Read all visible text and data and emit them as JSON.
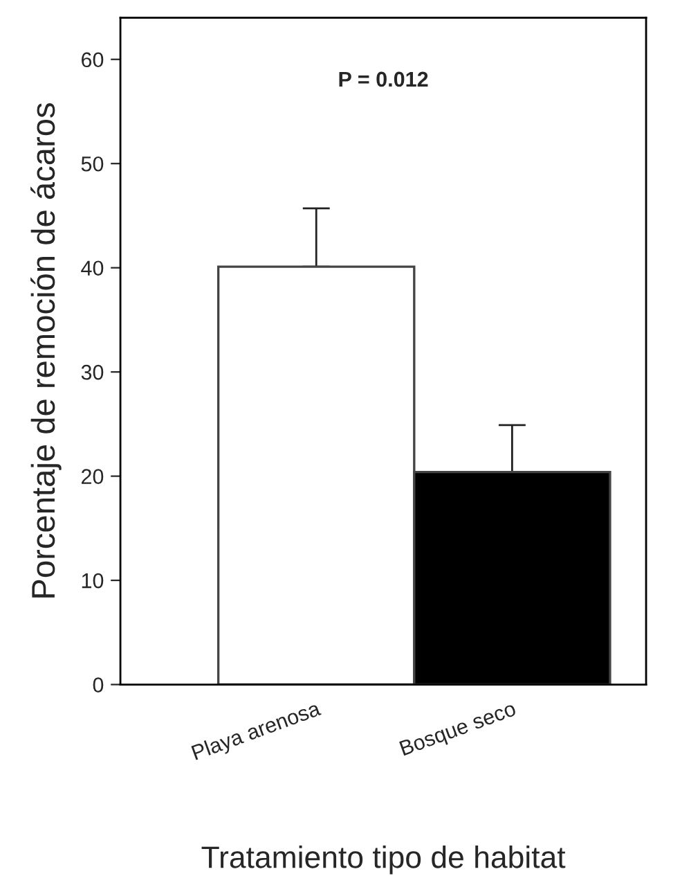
{
  "chart_data": {
    "type": "bar",
    "xlabel": "Tratamiento tipo de habitat",
    "ylabel": "Porcentaje de remoción de ácaros",
    "categories": [
      "Playa arenosa",
      "Bosque seco"
    ],
    "values": [
      40.1,
      20.4
    ],
    "colors": [
      "#ffffff",
      "#000000"
    ],
    "errors": [
      [
        40.1,
        45.7
      ],
      [
        20.4,
        24.9
      ]
    ],
    "ylim": [
      0,
      64
    ],
    "yticks": [
      0,
      10,
      20,
      30,
      40,
      50,
      60
    ],
    "annotations": [
      "P = 0.012"
    ],
    "grid": false
  }
}
